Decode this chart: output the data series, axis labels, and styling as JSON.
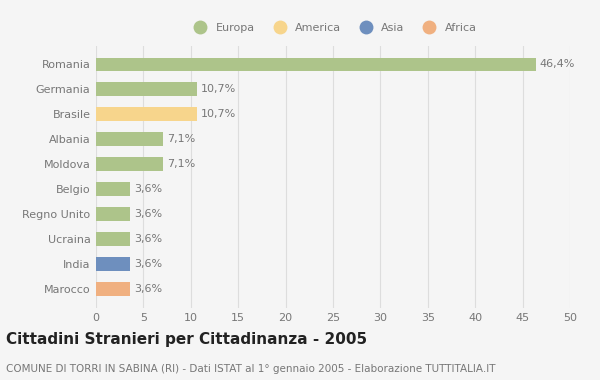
{
  "countries": [
    "Romania",
    "Germania",
    "Brasile",
    "Albania",
    "Moldova",
    "Belgio",
    "Regno Unito",
    "Ucraina",
    "India",
    "Marocco"
  ],
  "values": [
    46.4,
    10.7,
    10.7,
    7.1,
    7.1,
    3.6,
    3.6,
    3.6,
    3.6,
    3.6
  ],
  "labels": [
    "46,4%",
    "10,7%",
    "10,7%",
    "7,1%",
    "7,1%",
    "3,6%",
    "3,6%",
    "3,6%",
    "3,6%",
    "3,6%"
  ],
  "colors": [
    "#adc48a",
    "#adc48a",
    "#f7d58c",
    "#adc48a",
    "#adc48a",
    "#adc48a",
    "#adc48a",
    "#adc48a",
    "#6e8fbe",
    "#f0b080"
  ],
  "legend": [
    {
      "label": "Europa",
      "color": "#adc48a"
    },
    {
      "label": "America",
      "color": "#f7d58c"
    },
    {
      "label": "Asia",
      "color": "#6e8fbe"
    },
    {
      "label": "Africa",
      "color": "#f0b080"
    }
  ],
  "xlim": [
    0,
    50
  ],
  "xticks": [
    0,
    5,
    10,
    15,
    20,
    25,
    30,
    35,
    40,
    45,
    50
  ],
  "title": "Cittadini Stranieri per Cittadinanza - 2005",
  "subtitle": "COMUNE DI TORRI IN SABINA (RI) - Dati ISTAT al 1° gennaio 2005 - Elaborazione TUTTITALIA.IT",
  "background_color": "#f5f5f5",
  "plot_bg_color": "#f5f5f5",
  "grid_color": "#dddddd",
  "bar_height": 0.55,
  "label_fontsize": 8,
  "ytick_fontsize": 8,
  "xtick_fontsize": 8,
  "title_fontsize": 11,
  "subtitle_fontsize": 7.5,
  "text_color": "#777777",
  "title_color": "#222222"
}
